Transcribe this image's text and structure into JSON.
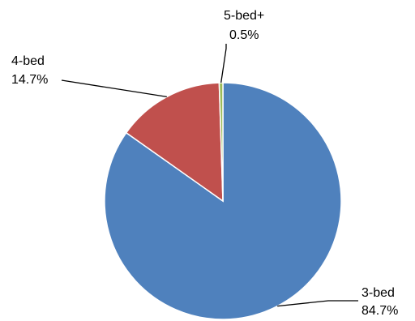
{
  "chart_data": {
    "type": "pie",
    "title": "",
    "start": "12 o'clock",
    "direction": "clockwise",
    "legend": "none",
    "slices": [
      {
        "name": "3-bed",
        "value": 84.7,
        "value_label": "84.7%",
        "color": "#4F81BD"
      },
      {
        "name": "4-bed",
        "value": 14.7,
        "value_label": "14.7%",
        "color": "#C0504D"
      },
      {
        "name": "5-bed+",
        "value": 0.5,
        "value_label": "0.5%",
        "color": "#9BBB59"
      }
    ]
  }
}
